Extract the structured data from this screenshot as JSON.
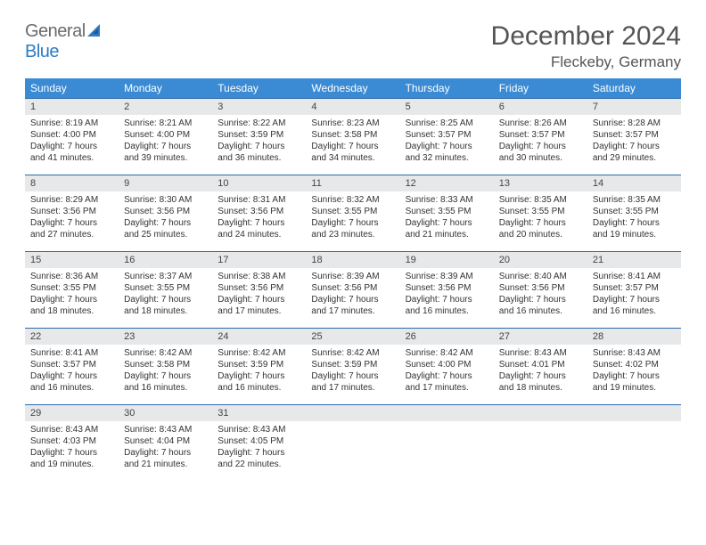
{
  "brand": {
    "general": "General",
    "blue": "Blue"
  },
  "title": {
    "month": "December 2024",
    "location": "Fleckeby, Germany"
  },
  "colors": {
    "header_bg": "#3b8bd4",
    "header_text": "#ffffff",
    "cell_divider": "#2d6aa8",
    "daynum_bg": "#e7e8e9",
    "body_text": "#333333",
    "brand_blue": "#2d7bc4",
    "brand_gray": "#6b6b6b"
  },
  "weekdays": [
    "Sunday",
    "Monday",
    "Tuesday",
    "Wednesday",
    "Thursday",
    "Friday",
    "Saturday"
  ],
  "weeks": [
    [
      {
        "n": "1",
        "sr": "Sunrise: 8:19 AM",
        "ss": "Sunset: 4:00 PM",
        "d1": "Daylight: 7 hours",
        "d2": "and 41 minutes."
      },
      {
        "n": "2",
        "sr": "Sunrise: 8:21 AM",
        "ss": "Sunset: 4:00 PM",
        "d1": "Daylight: 7 hours",
        "d2": "and 39 minutes."
      },
      {
        "n": "3",
        "sr": "Sunrise: 8:22 AM",
        "ss": "Sunset: 3:59 PM",
        "d1": "Daylight: 7 hours",
        "d2": "and 36 minutes."
      },
      {
        "n": "4",
        "sr": "Sunrise: 8:23 AM",
        "ss": "Sunset: 3:58 PM",
        "d1": "Daylight: 7 hours",
        "d2": "and 34 minutes."
      },
      {
        "n": "5",
        "sr": "Sunrise: 8:25 AM",
        "ss": "Sunset: 3:57 PM",
        "d1": "Daylight: 7 hours",
        "d2": "and 32 minutes."
      },
      {
        "n": "6",
        "sr": "Sunrise: 8:26 AM",
        "ss": "Sunset: 3:57 PM",
        "d1": "Daylight: 7 hours",
        "d2": "and 30 minutes."
      },
      {
        "n": "7",
        "sr": "Sunrise: 8:28 AM",
        "ss": "Sunset: 3:57 PM",
        "d1": "Daylight: 7 hours",
        "d2": "and 29 minutes."
      }
    ],
    [
      {
        "n": "8",
        "sr": "Sunrise: 8:29 AM",
        "ss": "Sunset: 3:56 PM",
        "d1": "Daylight: 7 hours",
        "d2": "and 27 minutes."
      },
      {
        "n": "9",
        "sr": "Sunrise: 8:30 AM",
        "ss": "Sunset: 3:56 PM",
        "d1": "Daylight: 7 hours",
        "d2": "and 25 minutes."
      },
      {
        "n": "10",
        "sr": "Sunrise: 8:31 AM",
        "ss": "Sunset: 3:56 PM",
        "d1": "Daylight: 7 hours",
        "d2": "and 24 minutes."
      },
      {
        "n": "11",
        "sr": "Sunrise: 8:32 AM",
        "ss": "Sunset: 3:55 PM",
        "d1": "Daylight: 7 hours",
        "d2": "and 23 minutes."
      },
      {
        "n": "12",
        "sr": "Sunrise: 8:33 AM",
        "ss": "Sunset: 3:55 PM",
        "d1": "Daylight: 7 hours",
        "d2": "and 21 minutes."
      },
      {
        "n": "13",
        "sr": "Sunrise: 8:35 AM",
        "ss": "Sunset: 3:55 PM",
        "d1": "Daylight: 7 hours",
        "d2": "and 20 minutes."
      },
      {
        "n": "14",
        "sr": "Sunrise: 8:35 AM",
        "ss": "Sunset: 3:55 PM",
        "d1": "Daylight: 7 hours",
        "d2": "and 19 minutes."
      }
    ],
    [
      {
        "n": "15",
        "sr": "Sunrise: 8:36 AM",
        "ss": "Sunset: 3:55 PM",
        "d1": "Daylight: 7 hours",
        "d2": "and 18 minutes."
      },
      {
        "n": "16",
        "sr": "Sunrise: 8:37 AM",
        "ss": "Sunset: 3:55 PM",
        "d1": "Daylight: 7 hours",
        "d2": "and 18 minutes."
      },
      {
        "n": "17",
        "sr": "Sunrise: 8:38 AM",
        "ss": "Sunset: 3:56 PM",
        "d1": "Daylight: 7 hours",
        "d2": "and 17 minutes."
      },
      {
        "n": "18",
        "sr": "Sunrise: 8:39 AM",
        "ss": "Sunset: 3:56 PM",
        "d1": "Daylight: 7 hours",
        "d2": "and 17 minutes."
      },
      {
        "n": "19",
        "sr": "Sunrise: 8:39 AM",
        "ss": "Sunset: 3:56 PM",
        "d1": "Daylight: 7 hours",
        "d2": "and 16 minutes."
      },
      {
        "n": "20",
        "sr": "Sunrise: 8:40 AM",
        "ss": "Sunset: 3:56 PM",
        "d1": "Daylight: 7 hours",
        "d2": "and 16 minutes."
      },
      {
        "n": "21",
        "sr": "Sunrise: 8:41 AM",
        "ss": "Sunset: 3:57 PM",
        "d1": "Daylight: 7 hours",
        "d2": "and 16 minutes."
      }
    ],
    [
      {
        "n": "22",
        "sr": "Sunrise: 8:41 AM",
        "ss": "Sunset: 3:57 PM",
        "d1": "Daylight: 7 hours",
        "d2": "and 16 minutes."
      },
      {
        "n": "23",
        "sr": "Sunrise: 8:42 AM",
        "ss": "Sunset: 3:58 PM",
        "d1": "Daylight: 7 hours",
        "d2": "and 16 minutes."
      },
      {
        "n": "24",
        "sr": "Sunrise: 8:42 AM",
        "ss": "Sunset: 3:59 PM",
        "d1": "Daylight: 7 hours",
        "d2": "and 16 minutes."
      },
      {
        "n": "25",
        "sr": "Sunrise: 8:42 AM",
        "ss": "Sunset: 3:59 PM",
        "d1": "Daylight: 7 hours",
        "d2": "and 17 minutes."
      },
      {
        "n": "26",
        "sr": "Sunrise: 8:42 AM",
        "ss": "Sunset: 4:00 PM",
        "d1": "Daylight: 7 hours",
        "d2": "and 17 minutes."
      },
      {
        "n": "27",
        "sr": "Sunrise: 8:43 AM",
        "ss": "Sunset: 4:01 PM",
        "d1": "Daylight: 7 hours",
        "d2": "and 18 minutes."
      },
      {
        "n": "28",
        "sr": "Sunrise: 8:43 AM",
        "ss": "Sunset: 4:02 PM",
        "d1": "Daylight: 7 hours",
        "d2": "and 19 minutes."
      }
    ],
    [
      {
        "n": "29",
        "sr": "Sunrise: 8:43 AM",
        "ss": "Sunset: 4:03 PM",
        "d1": "Daylight: 7 hours",
        "d2": "and 19 minutes."
      },
      {
        "n": "30",
        "sr": "Sunrise: 8:43 AM",
        "ss": "Sunset: 4:04 PM",
        "d1": "Daylight: 7 hours",
        "d2": "and 21 minutes."
      },
      {
        "n": "31",
        "sr": "Sunrise: 8:43 AM",
        "ss": "Sunset: 4:05 PM",
        "d1": "Daylight: 7 hours",
        "d2": "and 22 minutes."
      },
      null,
      null,
      null,
      null
    ]
  ]
}
